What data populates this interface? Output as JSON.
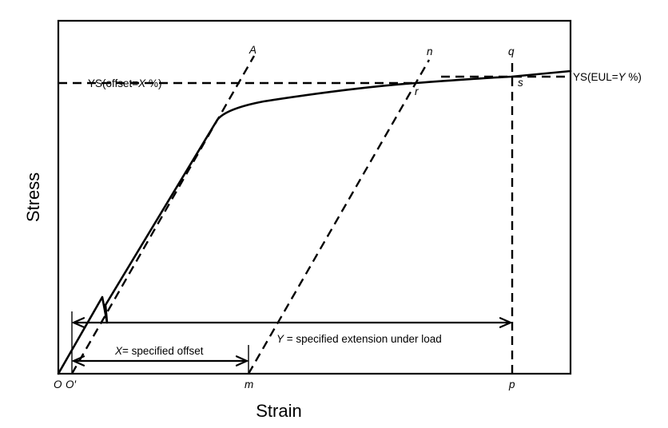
{
  "diagram": {
    "axis_x_label": "Strain",
    "axis_y_label": "Stress",
    "ys_offset": {
      "prefix": "YS(offset=",
      "var": "X",
      "suffix": " %)"
    },
    "ys_eul": {
      "prefix": "YS(EUL=",
      "var": "Y",
      "suffix": " %)"
    },
    "point_labels": {
      "A": "A",
      "n": "n",
      "q": "q",
      "r": "r",
      "s": "s",
      "O": "O",
      "O_prime": "O′",
      "m": "m",
      "p": "p"
    },
    "offset_annotation": {
      "var": "X",
      "text": "= specified offset"
    },
    "extension_annotation": {
      "var": "Y",
      "text": " = specified extension under load"
    }
  }
}
